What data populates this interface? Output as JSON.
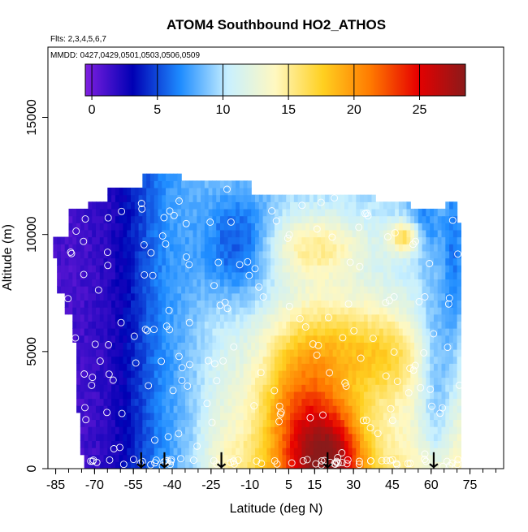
{
  "chart_data": {
    "type": "heatmap",
    "title": "ATOM4 Southbound HO2_ATHOS",
    "subtitle_flights": "Flts: 2,3,4,5,6,7",
    "subtitle_dates": "MMDD: 0427,0429,0501,0503,0506,0509",
    "xlabel": "Latitude (deg N)",
    "ylabel": "Altitude (m)",
    "xlim": [
      -88,
      88
    ],
    "ylim": [
      0,
      18000
    ],
    "x_tick_labels": [
      "-85",
      "-70",
      "-55",
      "-40",
      "-25",
      "-10",
      "5",
      "15",
      "30",
      "45",
      "60",
      "75"
    ],
    "x_tick_values": [
      -85,
      -70,
      -55,
      -40,
      -25,
      -10,
      5,
      15,
      30,
      45,
      60,
      75
    ],
    "y_tick_labels": [
      "0",
      "5000",
      "10000",
      "15000"
    ],
    "y_tick_values": [
      0,
      5000,
      10000,
      15000
    ],
    "colorbar": {
      "min": -0.5,
      "max": 28.5,
      "tick_labels": [
        "0",
        "5",
        "10",
        "15",
        "20",
        "25"
      ],
      "tick_values": [
        0,
        5,
        10,
        15,
        20,
        25
      ],
      "stops": [
        "#7f1fe0",
        "#0000b4",
        "#1e8cff",
        "#c8f0ff",
        "#fff8c0",
        "#ffd020",
        "#ff7a00",
        "#e60000",
        "#8b1a1a"
      ]
    },
    "grid": false,
    "field_description": "HO2 mixing ratio vs latitude and altitude; low (0-5) over southern high latitudes, high (15-24) in tropical/northern subtropical lower troposphere peaking near 25N below 1000 m",
    "tropopause_lat_range": [
      -80,
      72
    ],
    "profile_latitudes": [
      -52,
      -43,
      -21,
      20,
      61
    ]
  }
}
